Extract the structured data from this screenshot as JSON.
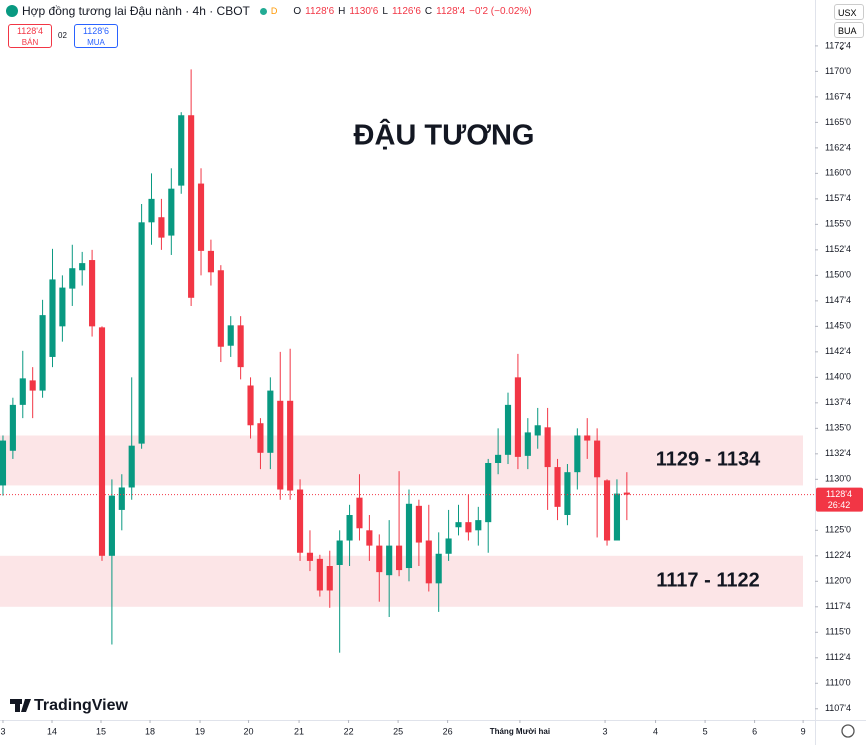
{
  "header": {
    "symbol": "Hợp đồng tương lai Đậu nành · 4h · CBOT",
    "interval_badge": "D",
    "ohlc": [
      {
        "key": "O",
        "value": "1128'6"
      },
      {
        "key": "H",
        "value": "1130'6"
      },
      {
        "key": "L",
        "value": "1126'6"
      },
      {
        "key": "C",
        "value": "1128'4"
      }
    ],
    "change": "−0'2 (−0.02%)",
    "sell_price": "1128'4",
    "sell_label": "BÁN",
    "spread": "02",
    "buy_price": "1128'6",
    "buy_label": "MUA",
    "currency": "USX",
    "unit": "BUA"
  },
  "chart_data": {
    "type": "candlestick",
    "title": "ĐẬU TƯƠNG",
    "up_color": "#089981",
    "down_color": "#f23645",
    "series": {
      "open": [
        1129.4,
        1132.8,
        1137.3,
        1139.7,
        1138.7,
        1142,
        1145,
        1148.7,
        1150.5,
        1151.5,
        1144.9,
        1122.5,
        1127,
        1129.2,
        1133.5,
        1155.2,
        1155.7,
        1153.9,
        1158.8,
        1165.7,
        1159,
        1152.4,
        1150.5,
        1143.1,
        1145.1,
        1139.2,
        1135.5,
        1132.6,
        1137.7,
        1137.7,
        1129,
        1122.8,
        1122.2,
        1121.5,
        1121.6,
        1124,
        1128.2,
        1125,
        1123.5,
        1120.6,
        1123.5,
        1121.3,
        1127.4,
        1124,
        1119.8,
        1122.7,
        1125.3,
        1125.8,
        1125,
        1125.8,
        1131.6,
        1132.4,
        1140,
        1132.3,
        1134.3,
        1135.1,
        1131.2,
        1126.5,
        1130.7,
        1134.3,
        1133.8,
        1129.9,
        1124,
        1128.7
      ],
      "high": [
        1134.3,
        1138,
        1142.6,
        1141,
        1147.6,
        1152.6,
        1150,
        1153,
        1152.3,
        1152.5,
        1145,
        1130,
        1130.5,
        1140,
        1157,
        1160,
        1157.5,
        1160.5,
        1166,
        1170.2,
        1160.5,
        1153.5,
        1151,
        1146,
        1146,
        1140,
        1136,
        1140,
        1142.5,
        1142.8,
        1130,
        1125,
        1122.6,
        1123,
        1125,
        1127.5,
        1130.5,
        1126.5,
        1124.6,
        1126,
        1130.8,
        1129,
        1128,
        1127.5,
        1124.8,
        1127,
        1127.5,
        1128.5,
        1127.3,
        1132,
        1135,
        1138.5,
        1142.3,
        1136,
        1137,
        1137,
        1132,
        1131.5,
        1135,
        1136,
        1135,
        1130,
        1130,
        1130.7
      ],
      "low": [
        1128.4,
        1132,
        1136,
        1136,
        1138,
        1141,
        1143.5,
        1147,
        1149,
        1144,
        1122,
        1113.8,
        1125,
        1128,
        1133,
        1153,
        1152.5,
        1152,
        1158,
        1147,
        1150,
        1149,
        1141.5,
        1142,
        1139.8,
        1134,
        1131,
        1131,
        1128,
        1128,
        1122,
        1121,
        1118.5,
        1117.4,
        1113,
        1121.5,
        1124,
        1122,
        1118,
        1116.5,
        1120.5,
        1120,
        1121.5,
        1119,
        1117,
        1122,
        1124.5,
        1124,
        1123.5,
        1122.8,
        1130.5,
        1131.5,
        1131,
        1131,
        1133,
        1127,
        1126,
        1125.5,
        1129,
        1132,
        1124.3,
        1123.5,
        1124,
        1126
      ],
      "close": [
        1133.8,
        1137.3,
        1139.9,
        1138.7,
        1146.1,
        1149.6,
        1148.8,
        1150.7,
        1151.2,
        1145,
        1122.5,
        1128.4,
        1129.2,
        1133.3,
        1155.2,
        1157.5,
        1153.7,
        1158.5,
        1165.7,
        1147.8,
        1152.4,
        1150.3,
        1143,
        1145.1,
        1141,
        1135.3,
        1132.6,
        1138.7,
        1129,
        1128.9,
        1122.8,
        1122,
        1119.1,
        1119.1,
        1124,
        1126.5,
        1125.2,
        1123.5,
        1120.9,
        1123.5,
        1121.1,
        1127.6,
        1123.8,
        1119.8,
        1122.7,
        1124.2,
        1125.8,
        1124.8,
        1126,
        1131.6,
        1132.4,
        1137.3,
        1132.2,
        1134.6,
        1135.3,
        1131.2,
        1127.3,
        1130.7,
        1134.3,
        1133.8,
        1130.2,
        1124,
        1128.6,
        1128.5
      ]
    },
    "ylim": [
      1106.4,
      1177.0
    ],
    "yticks": [
      {
        "value": 1172.5,
        "label": "1172'4"
      },
      {
        "value": 1170,
        "label": "1170'0"
      },
      {
        "value": 1167.5,
        "label": "1167'4"
      },
      {
        "value": 1165,
        "label": "1165'0"
      },
      {
        "value": 1162.5,
        "label": "1162'4"
      },
      {
        "value": 1160,
        "label": "1160'0"
      },
      {
        "value": 1157.5,
        "label": "1157'4"
      },
      {
        "value": 1155,
        "label": "1155'0"
      },
      {
        "value": 1152.5,
        "label": "1152'4"
      },
      {
        "value": 1150,
        "label": "1150'0"
      },
      {
        "value": 1147.5,
        "label": "1147'4"
      },
      {
        "value": 1145,
        "label": "1145'0"
      },
      {
        "value": 1142.5,
        "label": "1142'4"
      },
      {
        "value": 1140,
        "label": "1140'0"
      },
      {
        "value": 1137.5,
        "label": "1137'4"
      },
      {
        "value": 1135,
        "label": "1135'0"
      },
      {
        "value": 1132.5,
        "label": "1132'4"
      },
      {
        "value": 1130,
        "label": "1130'0"
      },
      {
        "value": 1125,
        "label": "1125'0"
      },
      {
        "value": 1122.5,
        "label": "1122'4"
      },
      {
        "value": 1120,
        "label": "1120'0"
      },
      {
        "value": 1117.5,
        "label": "1117'4"
      },
      {
        "value": 1115,
        "label": "1115'0"
      },
      {
        "value": 1112.5,
        "label": "1112'4"
      },
      {
        "value": 1110,
        "label": "1110'0"
      },
      {
        "value": 1107.5,
        "label": "1107'4"
      }
    ],
    "xlim": [
      -0.3,
      82
    ],
    "xticks": [
      {
        "value": 0,
        "label": "3"
      },
      {
        "value": 4.95,
        "label": "14"
      },
      {
        "value": 9.9,
        "label": "15"
      },
      {
        "value": 14.85,
        "label": "18"
      },
      {
        "value": 19.9,
        "label": "19"
      },
      {
        "value": 24.8,
        "label": "20"
      },
      {
        "value": 29.9,
        "label": "21"
      },
      {
        "value": 34.9,
        "label": "22"
      },
      {
        "value": 39.9,
        "label": "25"
      },
      {
        "value": 44.9,
        "label": "26"
      },
      {
        "value": 52.2,
        "label": "Tháng Mười hai"
      },
      {
        "value": 60.8,
        "label": "3"
      },
      {
        "value": 65.9,
        "label": "4"
      },
      {
        "value": 70.9,
        "label": "5"
      },
      {
        "value": 75.9,
        "label": "6"
      },
      {
        "value": 80.8,
        "label": "9"
      }
    ],
    "zones": [
      {
        "range": [
          1129.4,
          1134.3
        ],
        "label": "1129 - 1134"
      },
      {
        "range": [
          1117.5,
          1122.5
        ],
        "label": "1117 - 1122"
      }
    ],
    "zone_color": "#fce5e7",
    "last_price": {
      "value": 1128.5,
      "label": "1128'4"
    },
    "countdown": "26:42",
    "brand": "TradingView"
  }
}
